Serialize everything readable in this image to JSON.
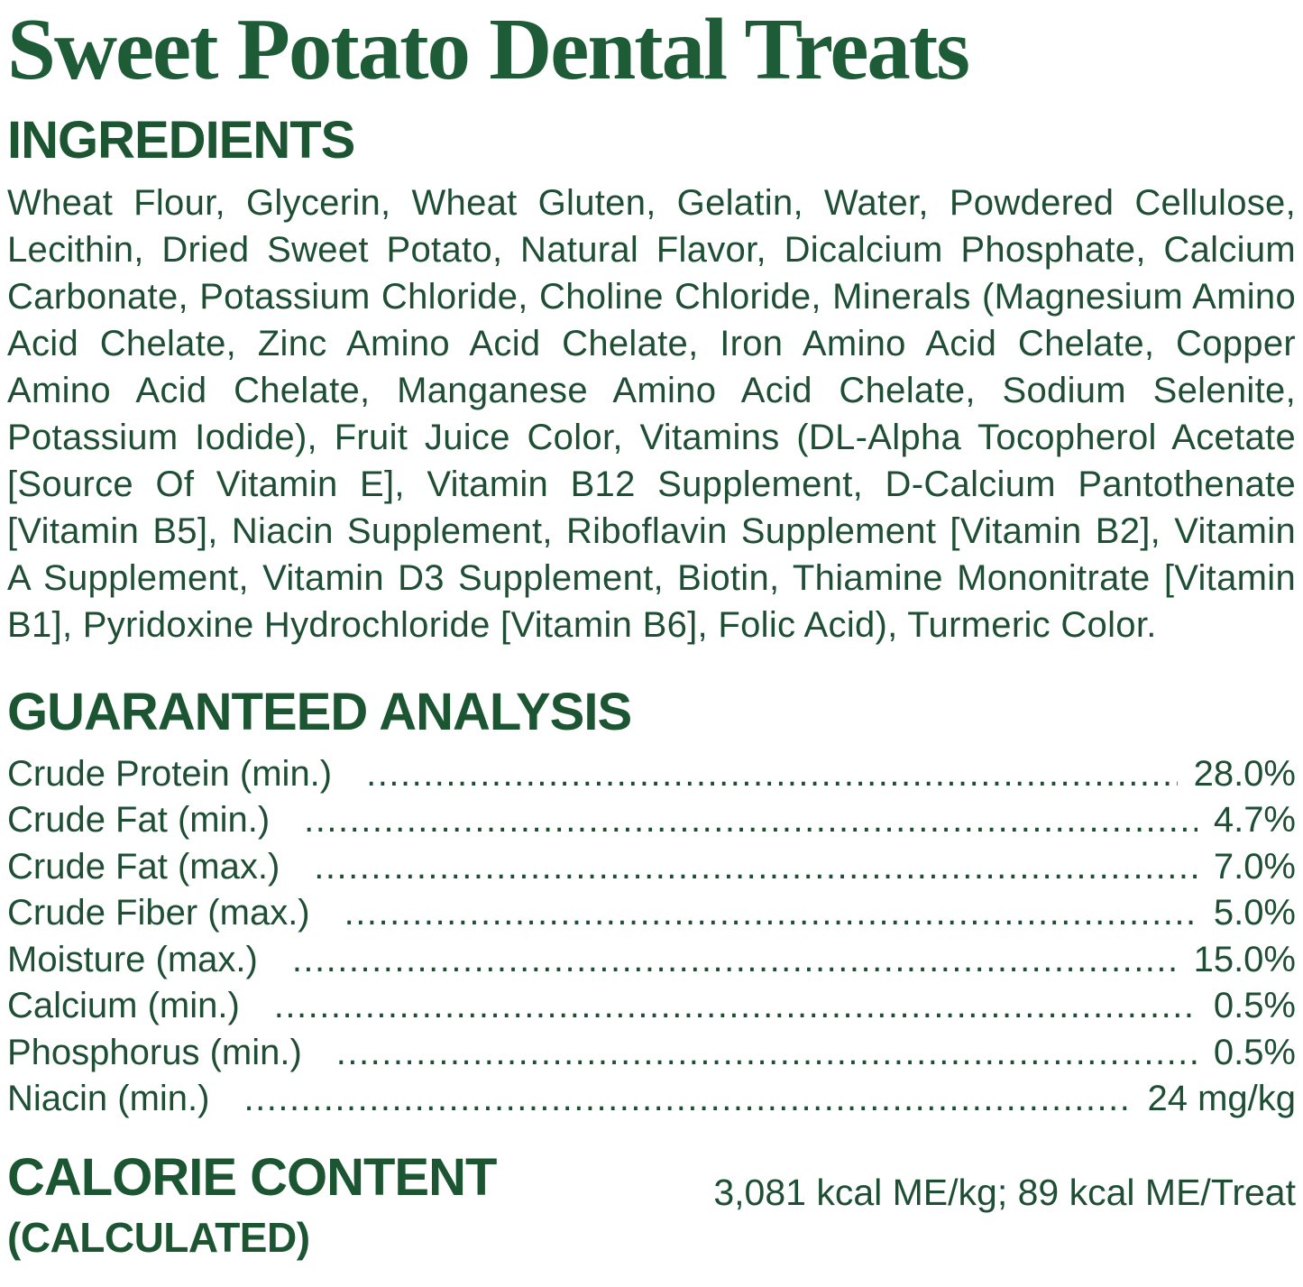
{
  "product": {
    "title": "Sweet Potato Dental Treats"
  },
  "colors": {
    "title_green": "#1e5c38",
    "heading_green": "#1c5531",
    "body_green": "#1e4f34",
    "page_background": "#ffffff"
  },
  "ingredients": {
    "heading": "INGREDIENTS",
    "text": "Wheat Flour, Glycerin, Wheat Gluten, Gelatin, Water, Powdered Cellulose, Lecithin, Dried Sweet Potato, Natural Flavor, Dicalcium Phosphate, Calcium Carbonate, Potassium Chloride, Choline Chloride, Minerals (Magnesium Amino Acid Chelate, Zinc Amino Acid Chelate, Iron Amino Acid Chelate, Copper Amino Acid Chelate, Manganese Amino Acid Chelate, Sodium Selenite, Potassium Iodide), Fruit Juice Color, Vitamins (DL-Alpha Tocopherol Acetate [Source Of Vitamin E], Vitamin B12 Supplement, D-Calcium Pantothenate [Vitamin B5], Niacin Supplement, Riboflavin Supplement [Vitamin B2], Vitamin A Supplement, Vitamin D3 Supplement, Biotin, Thiamine Mononitrate [Vitamin B1], Pyridoxine Hydrochloride [Vitamin B6], Folic Acid), Turmeric Color."
  },
  "guaranteed_analysis": {
    "heading": "GUARANTEED ANALYSIS",
    "rows": [
      {
        "label": "Crude Protein (min.)",
        "value": "28.0%"
      },
      {
        "label": "Crude Fat (min.)",
        "value": "4.7%"
      },
      {
        "label": "Crude Fat (max.)",
        "value": "7.0%"
      },
      {
        "label": "Crude Fiber (max.)",
        "value": "5.0%"
      },
      {
        "label": "Moisture (max.)",
        "value": "15.0%"
      },
      {
        "label": "Calcium (min.)",
        "value": "0.5%"
      },
      {
        "label": "Phosphorus (min.)",
        "value": "0.5%"
      },
      {
        "label": "Niacin (min.)",
        "value": "24 mg/kg"
      }
    ]
  },
  "calorie_content": {
    "heading": "CALORIE CONTENT",
    "subheading": "(CALCULATED)",
    "value": "3,081 kcal ME/kg; 89 kcal ME/Treat"
  }
}
